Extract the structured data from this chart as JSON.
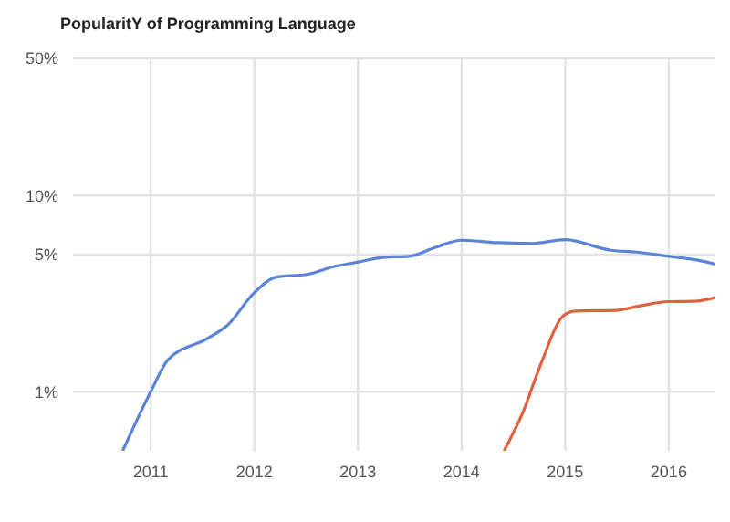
{
  "chart_data": {
    "type": "line",
    "title": "PopularitY of Programming Language",
    "xlim": [
      2010.25,
      2016.45
    ],
    "xticks": [
      2011,
      2012,
      2013,
      2014,
      2015,
      2016
    ],
    "ylim": [
      0.5,
      50
    ],
    "yticks": [
      {
        "value": 1,
        "label": "1%"
      },
      {
        "value": 5,
        "label": "5%"
      },
      {
        "value": 10,
        "label": "10%"
      },
      {
        "value": 50,
        "label": "50%"
      }
    ],
    "log": "y",
    "grid": true,
    "marker": "none",
    "line_style": "solid",
    "series": [
      {
        "color": "#5b84d8",
        "x": [
          2010.73,
          2011.0,
          2011.17,
          2011.54,
          2011.74,
          2012.0,
          2012.22,
          2012.5,
          2012.78,
          2013.0,
          2013.24,
          2013.49,
          2013.75,
          2014.0,
          2014.34,
          2014.68,
          2015.0,
          2015.44,
          2015.69,
          2016.0,
          2016.29,
          2016.45
        ],
        "values": [
          0.5,
          1.0,
          1.46,
          1.86,
          2.18,
          3.2,
          3.85,
          3.96,
          4.36,
          4.58,
          4.84,
          4.9,
          5.45,
          5.92,
          5.75,
          5.7,
          5.96,
          5.26,
          5.15,
          4.9,
          4.67,
          4.47
        ]
      },
      {
        "color": "#e0613f",
        "x": [
          2014.41,
          2014.59,
          2014.76,
          2014.99,
          2015.1,
          2015.49,
          2015.69,
          2016.0,
          2016.24,
          2016.45
        ],
        "values": [
          0.5,
          0.78,
          1.36,
          2.46,
          2.58,
          2.6,
          2.72,
          2.88,
          2.89,
          3.02
        ]
      }
    ]
  }
}
